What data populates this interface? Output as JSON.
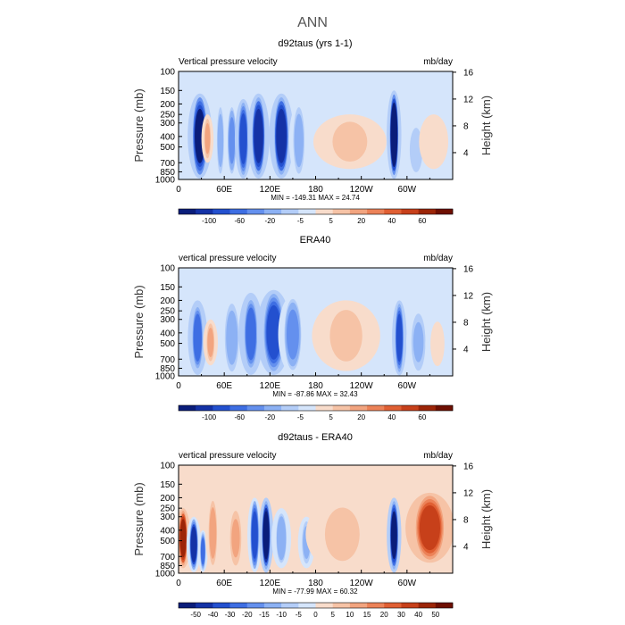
{
  "main_title": "ANN",
  "chart_data": [
    {
      "type": "heatmap",
      "title": "d92taus (yrs 1-1)",
      "variable_label": "Vertical pressure velocity",
      "units": "mb/day",
      "ylabel_left": "Pressure (mb)",
      "ylabel_right": "Height (km)",
      "x_ticks": [
        "0",
        "60E",
        "120E",
        "180",
        "120W",
        "60W"
      ],
      "x_tick_lon": [
        0,
        60,
        120,
        180,
        240,
        300
      ],
      "xlim": [
        0,
        360
      ],
      "y_ticks": [
        "100",
        "150",
        "200",
        "250",
        "300",
        "400",
        "500",
        "700",
        "850",
        "1000"
      ],
      "y_tick_p": [
        100,
        150,
        200,
        250,
        300,
        400,
        500,
        700,
        850,
        1000
      ],
      "ylim": [
        1000,
        100
      ],
      "y_scale": "log",
      "height_ticks": [
        "4",
        "8",
        "12",
        "16"
      ],
      "height_tick_km": [
        4,
        8,
        12,
        16
      ],
      "min_max_text": "MIN = -149.31  MAX =  24.74",
      "colorbar_labels": [
        "-100",
        "-60",
        "-20",
        "-5",
        "5",
        "20",
        "40",
        "60"
      ],
      "colorbar_colors": [
        "#0a1d7a",
        "#1432a6",
        "#2350cf",
        "#3e6ee3",
        "#6490ee",
        "#8cb1f4",
        "#b3cdf8",
        "#d5e5fb",
        "#f8dccb",
        "#f6c3a6",
        "#f2a47f",
        "#ec8258",
        "#e05f33",
        "#c7401a",
        "#9c2508",
        "#6e0f02"
      ],
      "fields": [
        {
          "lon": 28,
          "width": 10,
          "p_top": 160,
          "p_bot": 980,
          "value": -100
        },
        {
          "lon": 38,
          "width": 5,
          "p_top": 250,
          "p_bot": 700,
          "value": 30
        },
        {
          "lon": 55,
          "width": 5,
          "p_top": 200,
          "p_bot": 950,
          "value": -40
        },
        {
          "lon": 70,
          "width": 6,
          "p_top": 200,
          "p_bot": 950,
          "value": -50
        },
        {
          "lon": 85,
          "width": 7,
          "p_top": 180,
          "p_bot": 980,
          "value": -70
        },
        {
          "lon": 105,
          "width": 9,
          "p_top": 160,
          "p_bot": 980,
          "value": -90
        },
        {
          "lon": 135,
          "width": 10,
          "p_top": 160,
          "p_bot": 980,
          "value": -95
        },
        {
          "lon": 158,
          "width": 8,
          "p_top": 200,
          "p_bot": 950,
          "value": -40
        },
        {
          "lon": 225,
          "width": 30,
          "p_top": 250,
          "p_bot": 800,
          "value": 20
        },
        {
          "lon": 283,
          "width": 6,
          "p_top": 150,
          "p_bot": 990,
          "value": -120
        },
        {
          "lon": 312,
          "width": 10,
          "p_top": 300,
          "p_bot": 950,
          "value": -25
        },
        {
          "lon": 335,
          "width": 12,
          "p_top": 250,
          "p_bot": 800,
          "value": 12
        }
      ],
      "background_value": -3,
      "terrain": [
        [
          0,
          22
        ],
        [
          22,
          28
        ],
        [
          28,
          35
        ],
        [
          270,
          283
        ],
        [
          283,
          290
        ]
      ]
    },
    {
      "type": "heatmap",
      "title": "ERA40",
      "variable_label": "vertical pressure velocity",
      "units": "mb/day",
      "ylabel_left": "Pressure (mb)",
      "ylabel_right": "Height (km)",
      "x_ticks": [
        "0",
        "60E",
        "120E",
        "180",
        "120W",
        "60W"
      ],
      "x_tick_lon": [
        0,
        60,
        120,
        180,
        240,
        300
      ],
      "xlim": [
        0,
        360
      ],
      "y_ticks": [
        "100",
        "150",
        "200",
        "250",
        "300",
        "400",
        "500",
        "700",
        "850",
        "1000"
      ],
      "y_tick_p": [
        100,
        150,
        200,
        250,
        300,
        400,
        500,
        700,
        850,
        1000
      ],
      "ylim": [
        1000,
        100
      ],
      "y_scale": "log",
      "height_ticks": [
        "4",
        "8",
        "12",
        "16"
      ],
      "height_tick_km": [
        4,
        8,
        12,
        16
      ],
      "min_max_text": "MIN = -87.86  MAX =  32.43",
      "colorbar_labels": [
        "-100",
        "-60",
        "-20",
        "-5",
        "5",
        "20",
        "40",
        "60"
      ],
      "colorbar_colors": [
        "#0a1d7a",
        "#1432a6",
        "#2350cf",
        "#3e6ee3",
        "#6490ee",
        "#8cb1f4",
        "#b3cdf8",
        "#d5e5fb",
        "#f8dccb",
        "#f6c3a6",
        "#f2a47f",
        "#ec8258",
        "#e05f33",
        "#c7401a",
        "#9c2508",
        "#6e0f02"
      ],
      "fields": [
        {
          "lon": 25,
          "width": 8,
          "p_top": 200,
          "p_bot": 980,
          "value": -60
        },
        {
          "lon": 42,
          "width": 6,
          "p_top": 300,
          "p_bot": 800,
          "value": 35
        },
        {
          "lon": 70,
          "width": 10,
          "p_top": 200,
          "p_bot": 980,
          "value": -40
        },
        {
          "lon": 95,
          "width": 10,
          "p_top": 170,
          "p_bot": 980,
          "value": -60
        },
        {
          "lon": 125,
          "width": 14,
          "p_top": 160,
          "p_bot": 980,
          "value": -70
        },
        {
          "lon": 150,
          "width": 12,
          "p_top": 180,
          "p_bot": 950,
          "value": -45
        },
        {
          "lon": 220,
          "width": 28,
          "p_top": 200,
          "p_bot": 900,
          "value": 18
        },
        {
          "lon": 290,
          "width": 6,
          "p_top": 200,
          "p_bot": 990,
          "value": -80
        },
        {
          "lon": 315,
          "width": 10,
          "p_top": 250,
          "p_bot": 950,
          "value": -30
        },
        {
          "lon": 340,
          "width": 10,
          "p_top": 300,
          "p_bot": 850,
          "value": 8
        }
      ],
      "background_value": -3,
      "terrain": []
    },
    {
      "type": "heatmap",
      "title": "d92taus - ERA40",
      "variable_label": "vertical pressure velocity",
      "units": "mb/day",
      "ylabel_left": "Pressure (mb)",
      "ylabel_right": "Height (km)",
      "x_ticks": [
        "0",
        "60E",
        "120E",
        "180",
        "120W",
        "60W"
      ],
      "x_tick_lon": [
        0,
        60,
        120,
        180,
        240,
        300
      ],
      "xlim": [
        0,
        360
      ],
      "y_ticks": [
        "100",
        "150",
        "200",
        "250",
        "300",
        "400",
        "500",
        "700",
        "850",
        "1000"
      ],
      "y_tick_p": [
        100,
        150,
        200,
        250,
        300,
        400,
        500,
        700,
        850,
        1000
      ],
      "ylim": [
        1000,
        100
      ],
      "y_scale": "log",
      "height_ticks": [
        "4",
        "8",
        "12",
        "16"
      ],
      "height_tick_km": [
        4,
        8,
        12,
        16
      ],
      "min_max_text": "MIN = -77.99  MAX =  60.32",
      "colorbar_labels": [
        "-50",
        "-40",
        "-30",
        "-20",
        "-15",
        "-10",
        "-5",
        "0",
        "5",
        "10",
        "15",
        "20",
        "30",
        "40",
        "50"
      ],
      "colorbar_colors": [
        "#0a1d7a",
        "#1432a6",
        "#2350cf",
        "#3e6ee3",
        "#6490ee",
        "#8cb1f4",
        "#b3cdf8",
        "#d5e5fb",
        "#f8dccb",
        "#f6c3a6",
        "#f2a47f",
        "#ec8258",
        "#e05f33",
        "#c7401a",
        "#9c2508",
        "#6e0f02"
      ],
      "fields": [
        {
          "lon": 6,
          "width": 6,
          "p_top": 250,
          "p_bot": 900,
          "value": 45
        },
        {
          "lon": 20,
          "width": 6,
          "p_top": 300,
          "p_bot": 980,
          "value": -45
        },
        {
          "lon": 32,
          "width": 4,
          "p_top": 400,
          "p_bot": 980,
          "value": -30
        },
        {
          "lon": 45,
          "width": 6,
          "p_top": 200,
          "p_bot": 900,
          "value": 18
        },
        {
          "lon": 75,
          "width": 8,
          "p_top": 250,
          "p_bot": 900,
          "value": 15
        },
        {
          "lon": 100,
          "width": 6,
          "p_top": 200,
          "p_bot": 980,
          "value": -40
        },
        {
          "lon": 115,
          "width": 6,
          "p_top": 200,
          "p_bot": 990,
          "value": -55
        },
        {
          "lon": 135,
          "width": 8,
          "p_top": 250,
          "p_bot": 900,
          "value": -20
        },
        {
          "lon": 168,
          "width": 7,
          "p_top": 300,
          "p_bot": 900,
          "value": -15
        },
        {
          "lon": 215,
          "width": 30,
          "p_top": 200,
          "p_bot": 950,
          "value": 8
        },
        {
          "lon": 283,
          "width": 6,
          "p_top": 200,
          "p_bot": 990,
          "value": -50
        },
        {
          "lon": 330,
          "width": 20,
          "p_top": 180,
          "p_bot": 800,
          "value": 40
        }
      ],
      "background_value": 3,
      "terrain": [
        [
          5,
          30
        ],
        [
          30,
          40
        ],
        [
          280,
          295
        ],
        [
          295,
          305
        ]
      ]
    }
  ]
}
